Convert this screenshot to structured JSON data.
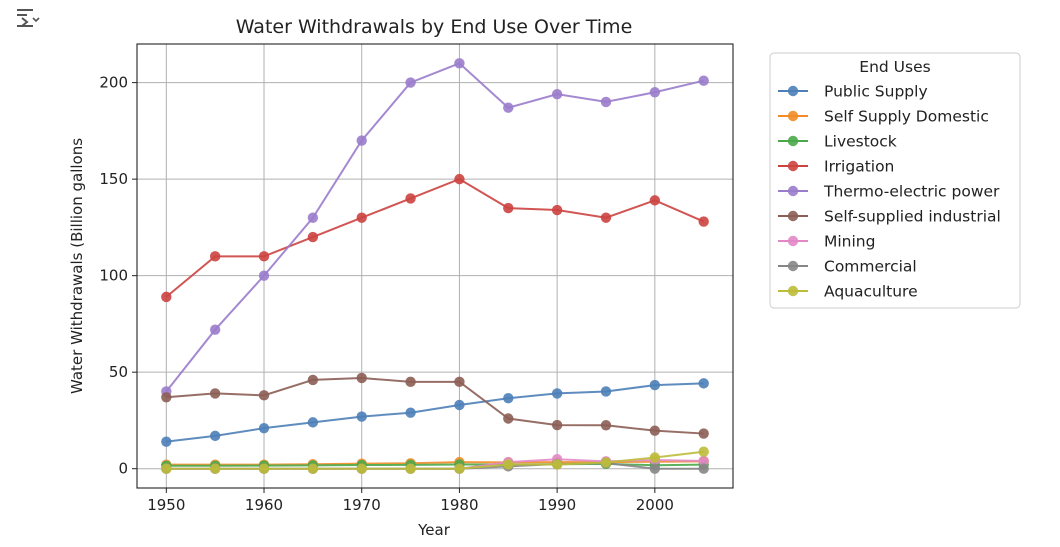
{
  "output_icon": "output-toggle-icon",
  "chart_data": {
    "type": "line",
    "title": "Water Withdrawals by End Use Over Time",
    "xlabel": "Year",
    "ylabel": "Water Withdrawals (Billion gallons",
    "xlim": [
      1947,
      2008
    ],
    "ylim": [
      -10,
      220
    ],
    "xticks": [
      1950,
      1960,
      1970,
      1980,
      1990,
      2000
    ],
    "yticks": [
      0,
      50,
      100,
      150,
      200
    ],
    "grid": true,
    "legend_title": "End Uses",
    "legend_position": "outside-right",
    "x": [
      1950,
      1955,
      1960,
      1965,
      1970,
      1975,
      1980,
      1985,
      1990,
      1995,
      2000,
      2005
    ],
    "series": [
      {
        "name": "Public Supply",
        "color": "#4e7fb8",
        "values": [
          14,
          17,
          21,
          24,
          27,
          29,
          33,
          36.5,
          39,
          40,
          43.3,
          44.2
        ]
      },
      {
        "name": "Self Supply Domestic",
        "color": "#f28c28",
        "values": [
          2.1,
          2.1,
          2.1,
          2.3,
          2.6,
          2.8,
          3.4,
          3.3,
          3.4,
          3.4,
          3.6,
          3.8
        ]
      },
      {
        "name": "Livestock",
        "color": "#4aa84a",
        "values": [
          1.5,
          1.5,
          1.6,
          1.7,
          1.9,
          2,
          2.2,
          2.2,
          2.3,
          2.5,
          1.8,
          2.1
        ]
      },
      {
        "name": "Irrigation",
        "color": "#cc4440",
        "values": [
          89,
          110,
          110,
          120,
          130,
          140,
          150,
          135,
          134,
          130,
          139,
          128
        ]
      },
      {
        "name": "Thermo-electric power",
        "color": "#9a7ccc",
        "values": [
          40,
          72,
          100,
          130,
          170,
          200,
          210,
          187,
          194,
          190,
          195,
          201
        ]
      },
      {
        "name": "Self-supplied industrial",
        "color": "#8c5e55",
        "values": [
          37,
          39,
          38,
          46,
          47,
          45,
          45,
          26,
          22.6,
          22.5,
          19.7,
          18.2
        ]
      },
      {
        "name": "Mining",
        "color": "#e288c6",
        "values": [
          0,
          0,
          0,
          0,
          0,
          0,
          0,
          3.4,
          4.9,
          3.8,
          4.5,
          4
        ]
      },
      {
        "name": "Commercial",
        "color": "#868686",
        "values": [
          0,
          0,
          0,
          0,
          0,
          0,
          0,
          1.2,
          2.4,
          2.9,
          0,
          0
        ]
      },
      {
        "name": "Aquaculture",
        "color": "#bcbd3a",
        "values": [
          0,
          0,
          0,
          0,
          0,
          0,
          0,
          2.2,
          2.2,
          3.2,
          5.8,
          8.8
        ]
      }
    ]
  }
}
